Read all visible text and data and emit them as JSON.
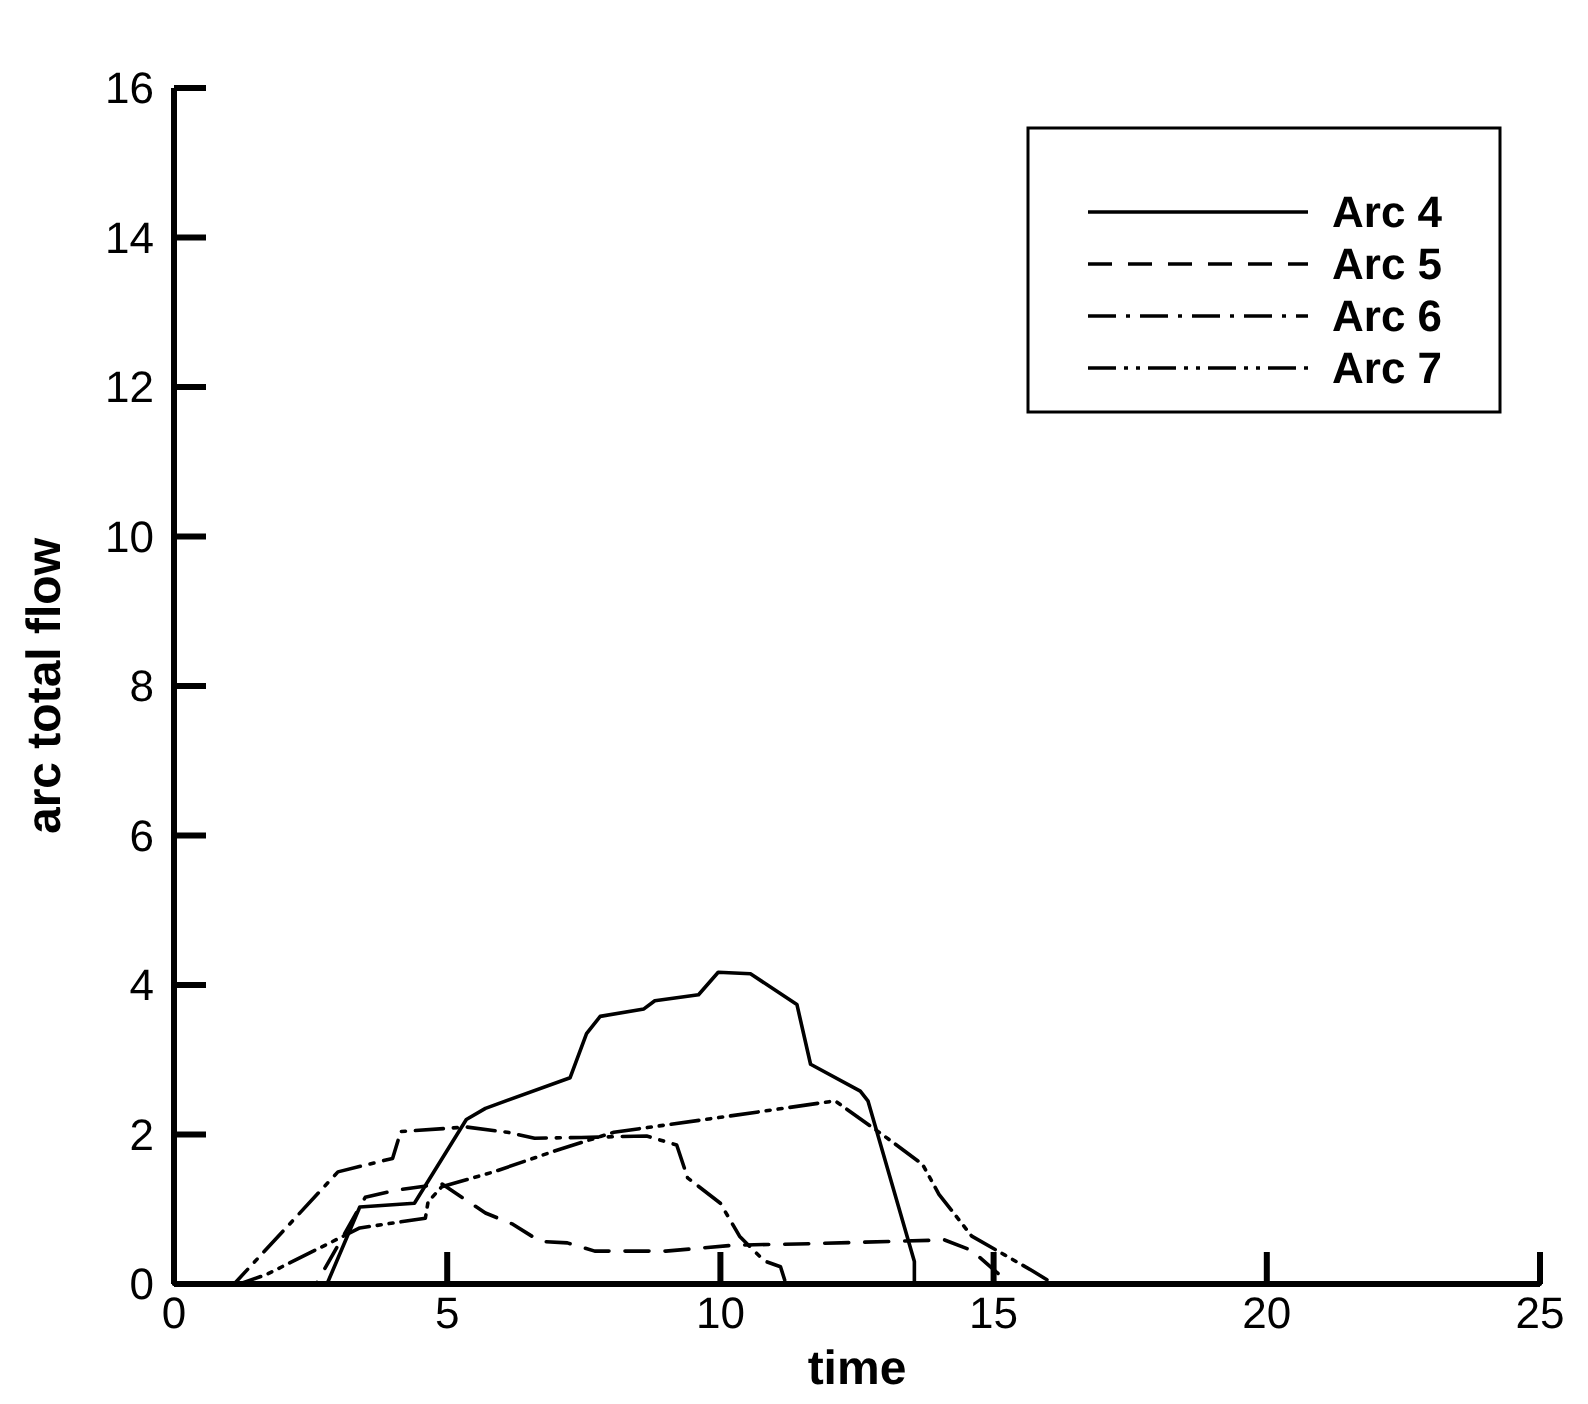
{
  "chart_data": {
    "type": "line",
    "xlabel": "time",
    "ylabel": "arc total flow",
    "xlim": [
      0,
      25
    ],
    "ylim": [
      0,
      16
    ],
    "xticks": [
      0,
      5,
      10,
      15,
      20,
      25
    ],
    "yticks": [
      0,
      2,
      4,
      6,
      8,
      10,
      12,
      14,
      16
    ],
    "grid": false,
    "legend": "top right",
    "marker": "none",
    "series": [
      {
        "name": "Arc 4",
        "color": "#000000",
        "line_style": "solid",
        "x": [
          0,
          2.8,
          3.4,
          4.4,
          5.35,
          5.7,
          7.25,
          7.55,
          7.8,
          8.6,
          8.8,
          9.6,
          9.96,
          10.55,
          11.4,
          11.65,
          12.56,
          12.7,
          13.55,
          13.55,
          25
        ],
        "values": [
          0,
          0,
          1.03,
          1.08,
          2.2,
          2.35,
          2.76,
          3.35,
          3.58,
          3.68,
          3.79,
          3.87,
          4.17,
          4.15,
          3.74,
          2.94,
          2.58,
          2.45,
          0.3,
          0,
          0
        ]
      },
      {
        "name": "Arc 5",
        "color": "#000000",
        "line_style": "dashed",
        "x": [
          0,
          2.6,
          3.5,
          4.1,
          4.9,
          5.7,
          6.2,
          6.7,
          7.2,
          7.7,
          9.0,
          10.25,
          11.7,
          14.1,
          14.6,
          15.3,
          25
        ],
        "values": [
          0,
          0,
          1.16,
          1.26,
          1.34,
          0.95,
          0.8,
          0.57,
          0.55,
          0.44,
          0.44,
          0.52,
          0.54,
          0.59,
          0.45,
          0,
          0
        ]
      },
      {
        "name": "Arc 6",
        "color": "#000000",
        "line_style": "dashdot",
        "x": [
          0,
          1.1,
          2.05,
          3.0,
          4.0,
          4.15,
          5.35,
          6.1,
          6.6,
          7.45,
          8.65,
          9.2,
          9.4,
          10.0,
          10.35,
          10.8,
          11.1,
          11.2,
          25
        ],
        "values": [
          0,
          0,
          0.75,
          1.5,
          1.68,
          2.04,
          2.1,
          2.03,
          1.95,
          1.96,
          1.98,
          1.86,
          1.42,
          1.08,
          0.64,
          0.31,
          0.23,
          0,
          0
        ]
      },
      {
        "name": "Arc 7",
        "color": "#000000",
        "line_style": "dashdotdot",
        "x": [
          0,
          1.2,
          1.7,
          3.4,
          4.6,
          4.65,
          4.9,
          5.85,
          7.05,
          8.05,
          10.1,
          12.1,
          13.0,
          13.7,
          14.0,
          14.6,
          15.2,
          15.7,
          16.1,
          25
        ],
        "values": [
          0,
          0,
          0.13,
          0.75,
          0.88,
          1.1,
          1.3,
          1.5,
          1.8,
          2.03,
          2.24,
          2.45,
          1.98,
          1.6,
          1.2,
          0.64,
          0.39,
          0.18,
          0,
          0
        ]
      }
    ]
  }
}
